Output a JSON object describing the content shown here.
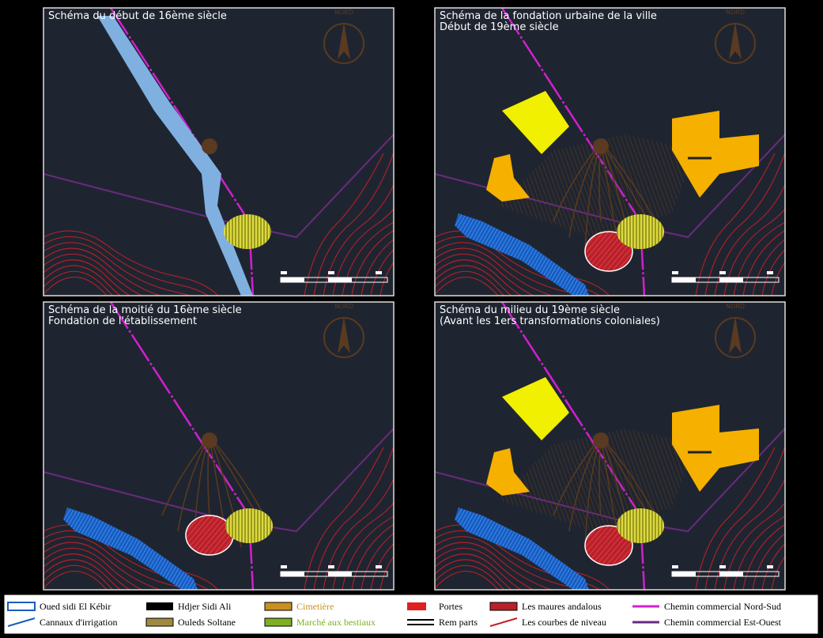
{
  "panels": [
    {
      "title": [
        "Schéma du début de 16ème siècle"
      ]
    },
    {
      "title": [
        "Schéma de la fondation urbaine de la ville",
        "Début de 19ème siècle"
      ]
    },
    {
      "title": [
        "Schéma de la moitié du 16ème siècle",
        "Fondation de l'établissement"
      ]
    },
    {
      "title": [
        "Schéma du milieu du 19ème siècle",
        "(Avant les 1ers transformations coloniales)"
      ]
    }
  ],
  "compass_label": "NORD",
  "legend": [
    {
      "label": "Oued sidi El Kébir"
    },
    {
      "label": "Cannaux d'irrigation"
    },
    {
      "label": "Hdjer Sidi Ali"
    },
    {
      "label": "Ouleds Soltane"
    },
    {
      "label": "Cimetière"
    },
    {
      "label": "Marché aux bestiaux"
    },
    {
      "label": "Portes"
    },
    {
      "label": "Rem parts"
    },
    {
      "label": "Les maures andalous"
    },
    {
      "label": "Les courbes de niveau"
    },
    {
      "label": "Chemin commercial Nord-Sud"
    },
    {
      "label": "Chemin commercial Est-Ouest"
    }
  ]
}
